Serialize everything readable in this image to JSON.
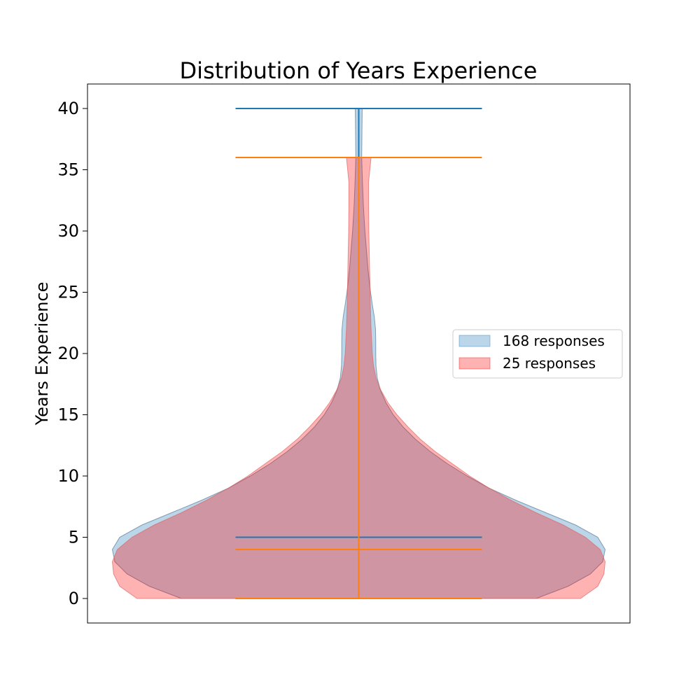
{
  "chart_data": {
    "type": "violin",
    "title": "Distribution of Years Experience",
    "xlabel": "",
    "ylabel": "Years Experience",
    "ylim": [
      -2,
      42
    ],
    "yticks": [
      0,
      5,
      10,
      15,
      20,
      25,
      30,
      35,
      40
    ],
    "grid": false,
    "legend": {
      "position": "right",
      "entries": [
        "168 responses",
        "25 responses"
      ]
    },
    "series": [
      {
        "name": "168 responses",
        "fill_color": "#1f77b4",
        "stat_color": "#1f77b4",
        "min": 0,
        "max": 40,
        "median": 5,
        "density": [
          [
            0,
            0.72
          ],
          [
            1,
            0.85
          ],
          [
            2,
            0.94
          ],
          [
            3,
            0.99
          ],
          [
            4,
            1.0
          ],
          [
            5,
            0.97
          ],
          [
            6,
            0.88
          ],
          [
            7,
            0.76
          ],
          [
            8,
            0.64
          ],
          [
            9,
            0.53
          ],
          [
            10,
            0.44
          ],
          [
            11,
            0.36
          ],
          [
            12,
            0.29
          ],
          [
            13,
            0.23
          ],
          [
            14,
            0.18
          ],
          [
            15,
            0.14
          ],
          [
            16,
            0.11
          ],
          [
            17,
            0.088
          ],
          [
            18,
            0.075
          ],
          [
            19,
            0.07
          ],
          [
            20,
            0.069
          ],
          [
            21,
            0.069
          ],
          [
            22,
            0.068
          ],
          [
            23,
            0.063
          ],
          [
            24,
            0.055
          ],
          [
            25,
            0.048
          ],
          [
            26,
            0.042
          ],
          [
            27,
            0.037
          ],
          [
            28,
            0.033
          ],
          [
            29,
            0.029
          ],
          [
            30,
            0.025
          ],
          [
            32,
            0.019
          ],
          [
            34,
            0.015
          ],
          [
            36,
            0.012
          ],
          [
            38,
            0.013
          ],
          [
            40,
            0.014
          ]
        ]
      },
      {
        "name": "25 responses",
        "fill_color": "#ff0000",
        "stat_color": "#ff7f0e",
        "min": 0,
        "max": 36,
        "median": 4,
        "density": [
          [
            0,
            0.9
          ],
          [
            1,
            0.97
          ],
          [
            2,
            0.995
          ],
          [
            3,
            1.0
          ],
          [
            4,
            0.98
          ],
          [
            5,
            0.92
          ],
          [
            6,
            0.83
          ],
          [
            7,
            0.72
          ],
          [
            8,
            0.62
          ],
          [
            9,
            0.53
          ],
          [
            10,
            0.45
          ],
          [
            11,
            0.38
          ],
          [
            12,
            0.31
          ],
          [
            13,
            0.25
          ],
          [
            14,
            0.2
          ],
          [
            15,
            0.155
          ],
          [
            16,
            0.118
          ],
          [
            17,
            0.09
          ],
          [
            18,
            0.07
          ],
          [
            19,
            0.06
          ],
          [
            20,
            0.055
          ],
          [
            22,
            0.05
          ],
          [
            24,
            0.047
          ],
          [
            26,
            0.045
          ],
          [
            28,
            0.043
          ],
          [
            30,
            0.041
          ],
          [
            32,
            0.04
          ],
          [
            34,
            0.04
          ],
          [
            36,
            0.05
          ]
        ]
      }
    ]
  }
}
